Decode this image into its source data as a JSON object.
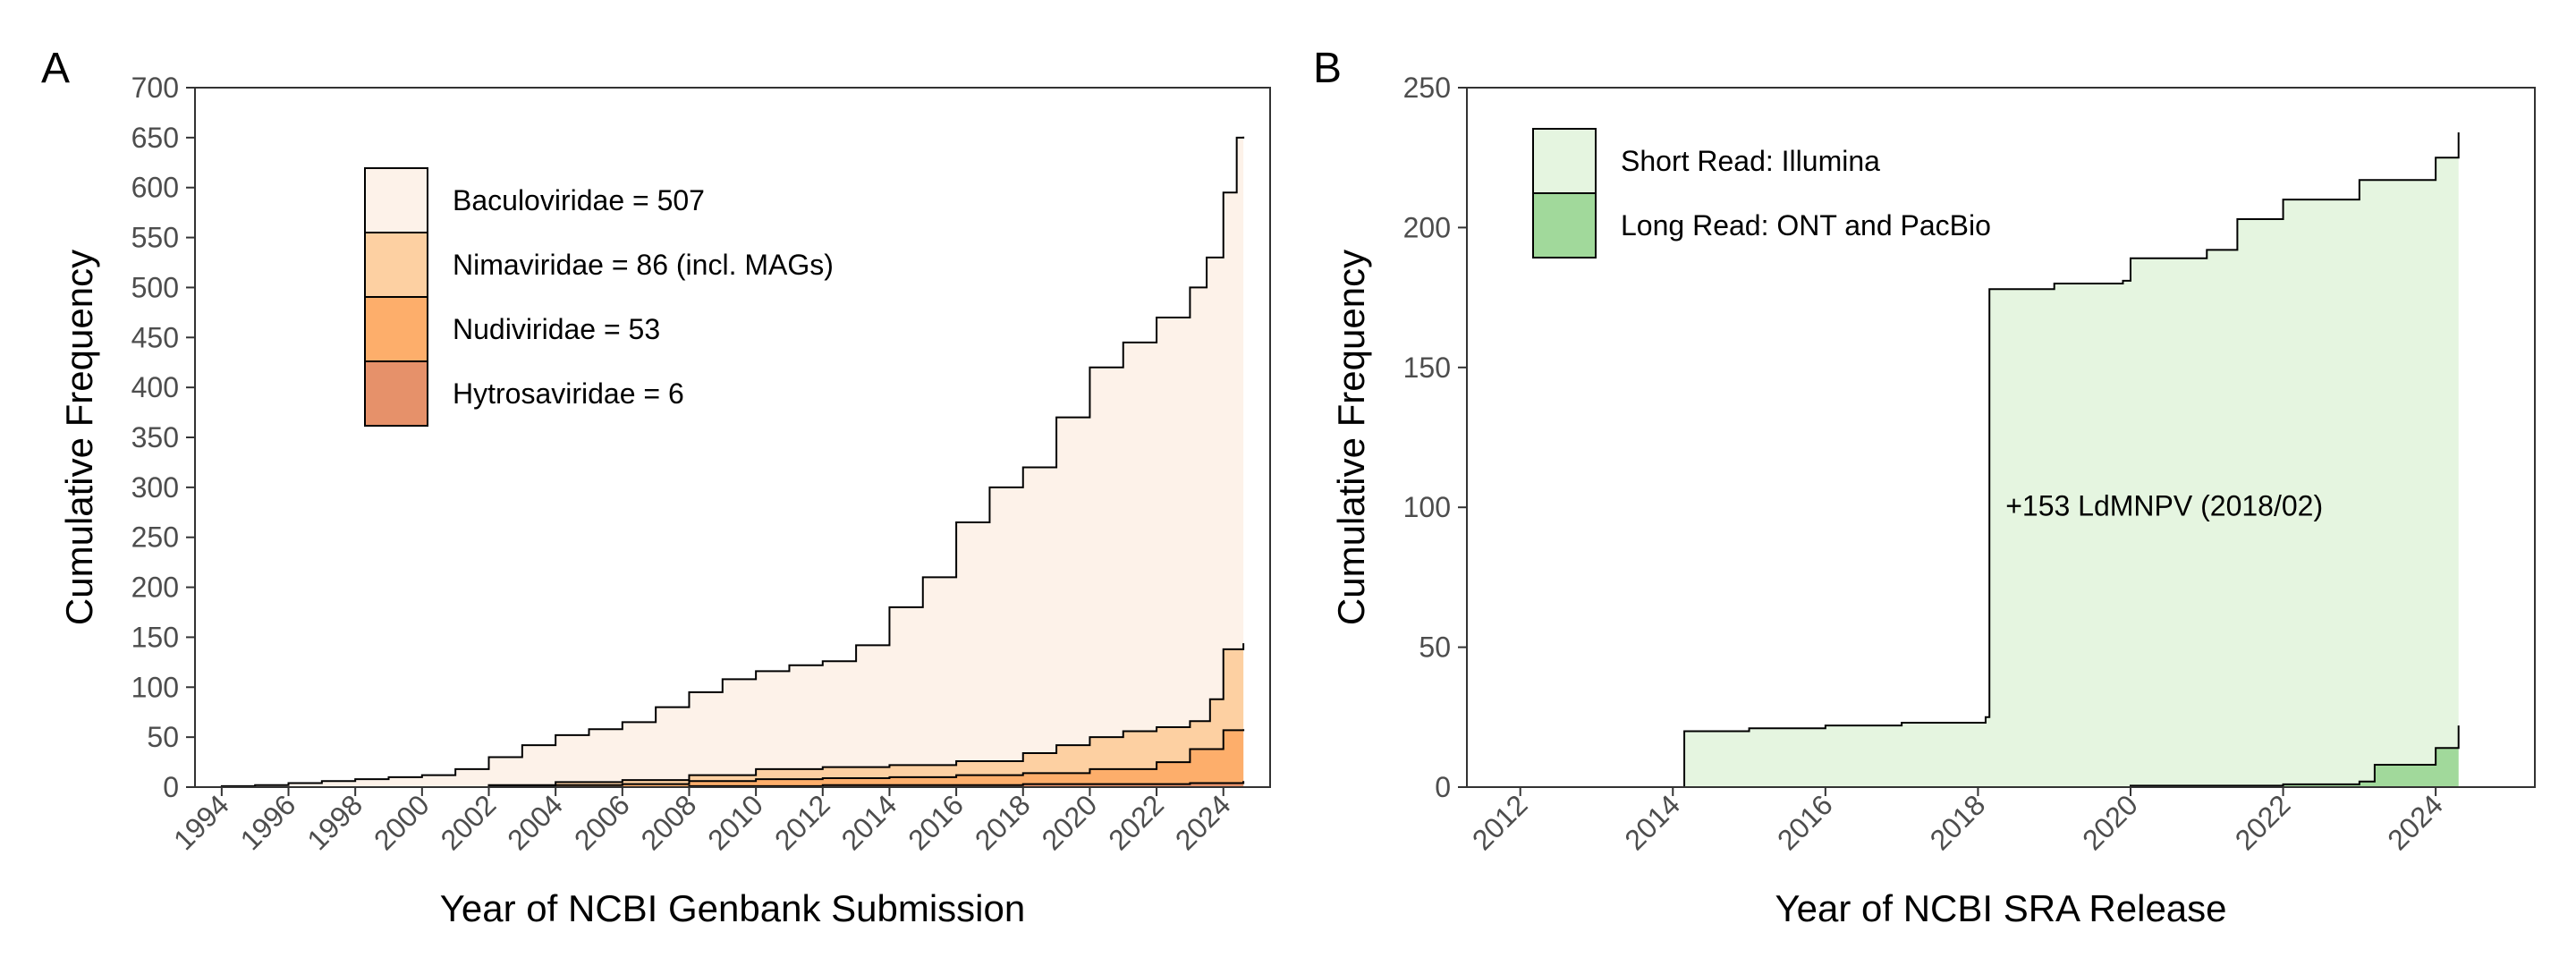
{
  "chart_data": [
    {
      "panel": "A",
      "type": "area",
      "xlabel": "Year of NCBI Genbank Submission",
      "ylabel": "Cumulative Frequency",
      "xlim": [
        1993.2,
        2025.4
      ],
      "ylim": [
        0,
        700
      ],
      "xticks": [
        "1994",
        "1996",
        "1998",
        "2000",
        "2002",
        "2004",
        "2006",
        "2008",
        "2010",
        "2012",
        "2014",
        "2016",
        "2018",
        "2020",
        "2022",
        "2024"
      ],
      "yticks": [
        "0",
        "50",
        "100",
        "150",
        "200",
        "250",
        "300",
        "350",
        "400",
        "450",
        "500",
        "550",
        "600",
        "650",
        "700"
      ],
      "legend_position": "top-left",
      "series": [
        {
          "name": "Baculoviridae = 507",
          "color": "#fdf2e9",
          "x": [
            1993.5,
            1994,
            1995,
            1996,
            1997,
            1998,
            1999,
            2000,
            2001,
            2002,
            2003,
            2004,
            2005,
            2006,
            2007,
            2008,
            2009,
            2010,
            2011,
            2012,
            2013,
            2014,
            2015,
            2016,
            2017,
            2018,
            2019,
            2020,
            2021,
            2022,
            2023,
            2023.5,
            2024,
            2024.4,
            2024.6
          ],
          "y": [
            0,
            1,
            2,
            4,
            6,
            8,
            10,
            12,
            18,
            30,
            42,
            52,
            58,
            65,
            80,
            95,
            108,
            116,
            122,
            126,
            142,
            180,
            210,
            265,
            300,
            320,
            370,
            420,
            445,
            470,
            500,
            530,
            595,
            650,
            651
          ]
        },
        {
          "name": "Nimaviridae = 86 (incl. MAGs)",
          "color": "#fdd0a2",
          "x": [
            1993.5,
            2000,
            2002,
            2004,
            2006,
            2008,
            2010,
            2012,
            2014,
            2016,
            2018,
            2019,
            2020,
            2021,
            2022,
            2023,
            2023.6,
            2024,
            2024.6
          ],
          "y": [
            0,
            0,
            2,
            5,
            7,
            12,
            18,
            20,
            22,
            26,
            34,
            42,
            50,
            56,
            60,
            66,
            88,
            138,
            144
          ]
        },
        {
          "name": "Nudiviridae = 53",
          "color": "#fdae6b",
          "x": [
            1993.5,
            2000,
            2002,
            2004,
            2006,
            2008,
            2010,
            2012,
            2014,
            2016,
            2018,
            2020,
            2022,
            2023,
            2024,
            2024.6
          ],
          "y": [
            0,
            0,
            1,
            2,
            3,
            6,
            8,
            9,
            10,
            12,
            14,
            18,
            25,
            38,
            57,
            58
          ]
        },
        {
          "name": "Hytrosaviridae = 6",
          "color": "#e6916a",
          "x": [
            1993.5,
            2007,
            2008,
            2012,
            2018,
            2023,
            2024.6
          ],
          "y": [
            0,
            0,
            1,
            2,
            3,
            4,
            6
          ]
        }
      ]
    },
    {
      "panel": "B",
      "type": "area",
      "xlabel": "Year of NCBI SRA Release",
      "ylabel": "Cumulative Frequency",
      "xlim": [
        2011.3,
        2025.3
      ],
      "ylim": [
        0,
        250
      ],
      "xticks": [
        "2012",
        "2014",
        "2016",
        "2018",
        "2020",
        "2022",
        "2024"
      ],
      "yticks": [
        "0",
        "50",
        "100",
        "150",
        "200",
        "250"
      ],
      "legend_position": "top-left",
      "annotation": "+153 LdMNPV (2018/02)",
      "series": [
        {
          "name": "Short Read: Illumina",
          "color": "#e5f5e0",
          "x": [
            2011.9,
            2014.1,
            2014.15,
            2015,
            2016,
            2017,
            2018.1,
            2018.15,
            2019,
            2019.9,
            2020,
            2021,
            2021.4,
            2022,
            2023,
            2024,
            2024.3
          ],
          "y": [
            0,
            0,
            20,
            21,
            22,
            23,
            25,
            178,
            180,
            181,
            189,
            192,
            203,
            210,
            217,
            225,
            234
          ]
        },
        {
          "name": "Long Read: ONT and PacBio",
          "color": "#a1d99b",
          "x": [
            2011.9,
            2019.9,
            2020,
            2022,
            2023,
            2023.2,
            2024,
            2024.3
          ],
          "y": [
            0,
            0,
            0.5,
            1,
            2,
            8,
            14,
            22
          ]
        }
      ]
    }
  ]
}
